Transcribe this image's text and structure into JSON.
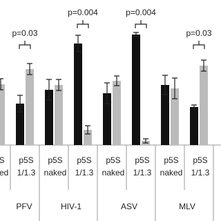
{
  "chart_data": {
    "type": "bar",
    "categories": [
      [
        "p5S",
        "naked"
      ],
      [
        "p5S",
        "1/1.3"
      ],
      [
        "p5S",
        "naked"
      ],
      [
        "p5S",
        "1/1.3"
      ],
      [
        "p5S",
        "naked"
      ],
      [
        "p5S",
        "1/1.3"
      ],
      [
        "p5S",
        "naked"
      ],
      [
        "p5S",
        "1/1.3"
      ]
    ],
    "groups": [
      "PFV",
      "HIV-1",
      "ASV",
      "MLV"
    ],
    "series": [
      {
        "color": "#111111",
        "values": [
          null,
          60,
          80,
          147,
          75,
          160,
          87,
          55
        ],
        "errors": [
          null,
          12,
          15,
          12,
          15,
          3,
          14,
          3
        ]
      },
      {
        "color": "#bbbbbb",
        "values": [
          88,
          110,
          87,
          22,
          93,
          6,
          82,
          115
        ],
        "errors": [
          8,
          8,
          8,
          6,
          7,
          3,
          15,
          8
        ]
      }
    ],
    "ylim": [
      0,
      170
    ],
    "annotations": [
      {
        "text": "p=0.03",
        "category": 1,
        "level": 145
      },
      {
        "text": "p=0.004",
        "category": 3,
        "level": 175
      },
      {
        "text": "p=0.004",
        "category": 5,
        "level": 175
      },
      {
        "text": "p=0.03",
        "category": 7,
        "level": 145
      }
    ]
  }
}
